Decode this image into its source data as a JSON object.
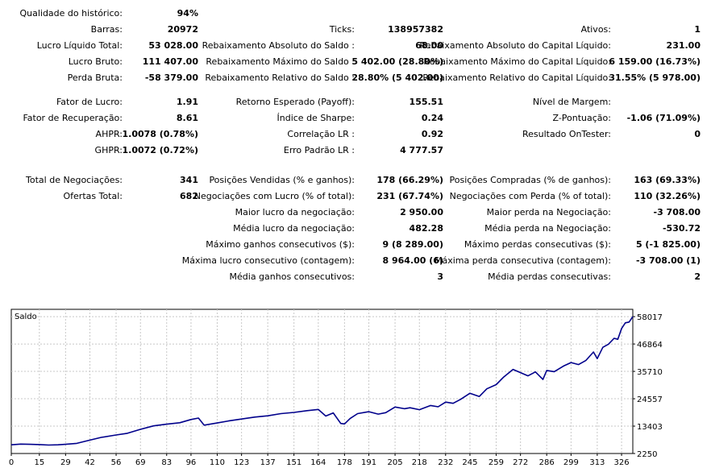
{
  "report": {
    "sections": [
      {
        "columns": [
          [
            {
              "label": "Qualidade do histórico:",
              "value": "94%"
            },
            {
              "label": "Barras:",
              "value": "20972"
            },
            {
              "label": "Lucro Líquido Total:",
              "value": "53 028.00"
            },
            {
              "label": "Lucro Bruto:",
              "value": "111 407.00"
            },
            {
              "label": "Perda Bruta:",
              "value": "-58 379.00"
            }
          ],
          [
            {
              "label": "",
              "value": ""
            },
            {
              "label": "Ticks:",
              "value": "138957382"
            },
            {
              "label": "Rebaixamento Absoluto do Saldo :",
              "value": "68.00"
            },
            {
              "label": "Rebaixamento Máximo do Saldo :",
              "value": "5 402.00 (28.80%)"
            },
            {
              "label": "Rebaixamento Relativo do Saldo :",
              "value": "28.80% (5 402.00)"
            }
          ],
          [
            {
              "label": "",
              "value": ""
            },
            {
              "label": "Ativos:",
              "value": "1"
            },
            {
              "label": "Rebaixamento Absoluto do Capital Líquido:",
              "value": "231.00"
            },
            {
              "label": "Rebaixamento Máximo do Capital Líquido:",
              "value": "6 159.00 (16.73%)"
            },
            {
              "label": "Rebaixamento Relativo do Capital Líquido:",
              "value": "31.55% (5 978.00)"
            }
          ]
        ]
      },
      {
        "columns": [
          [
            {
              "label": "Fator de Lucro:",
              "value": "1.91"
            },
            {
              "label": "Fator de Recuperação:",
              "value": "8.61"
            },
            {
              "label": "AHPR:",
              "value": "1.0078 (0.78%)"
            },
            {
              "label": "GHPR:",
              "value": "1.0072 (0.72%)"
            }
          ],
          [
            {
              "label": "Retorno Esperado (Payoff):",
              "value": "155.51"
            },
            {
              "label": "Índice de Sharpe:",
              "value": "0.24"
            },
            {
              "label": "Correlação LR :",
              "value": "0.92"
            },
            {
              "label": "Erro Padrão LR :",
              "value": "4 777.57"
            }
          ],
          [
            {
              "label": "Nível de Margem:",
              "value": ""
            },
            {
              "label": "Z-Pontuação:",
              "value": "-1.06 (71.09%)"
            },
            {
              "label": "Resultado OnTester:",
              "value": "0"
            },
            {
              "label": "",
              "value": ""
            }
          ]
        ]
      },
      {
        "columns": [
          [
            {
              "label": "Total de Negociações:",
              "value": "341"
            },
            {
              "label": "Ofertas Total:",
              "value": "682"
            }
          ],
          [
            {
              "label": "Posições Vendidas (% e ganhos):",
              "value": "178 (66.29%)"
            },
            {
              "label": "Negociações com Lucro (% of total):",
              "value": "231 (67.74%)"
            },
            {
              "label": "Maior lucro da negociação:",
              "value": "2 950.00"
            },
            {
              "label": "Média lucro da negociação:",
              "value": "482.28"
            },
            {
              "label": "Máximo ganhos consecutivos ($):",
              "value": "9 (8 289.00)"
            },
            {
              "label": "Máxima lucro consecutivo (contagem):",
              "value": "8 964.00 (6)"
            },
            {
              "label": "Média ganhos consecutivos:",
              "value": "3"
            }
          ],
          [
            {
              "label": "Posições Compradas (% de ganhos):",
              "value": "163 (69.33%)"
            },
            {
              "label": "Negociações com Perda (% of total):",
              "value": "110 (32.26%)"
            },
            {
              "label": "Maior perda na Negociação:",
              "value": "-3 708.00"
            },
            {
              "label": "Média perda na Negociação:",
              "value": "-530.72"
            },
            {
              "label": "Máximo perdas consecutivas ($):",
              "value": "5 (-1 825.00)"
            },
            {
              "label": "Máxima perda consecutiva (contagem):",
              "value": "-3 708.00 (1)"
            },
            {
              "label": "Média perdas consecutivas:",
              "value": "2"
            }
          ]
        ]
      }
    ]
  },
  "chart_data": {
    "type": "line",
    "title": "Saldo",
    "xlabel": "",
    "ylabel": "",
    "x_ticks": [
      "0",
      "15",
      "29",
      "42",
      "56",
      "69",
      "83",
      "96",
      "110",
      "123",
      "137",
      "151",
      "164",
      "178",
      "191",
      "205",
      "218",
      "232",
      "245",
      "259",
      "272",
      "286",
      "299",
      "313",
      "326"
    ],
    "y_ticks": [
      58017,
      46864,
      35710,
      24557,
      13403,
      2250
    ],
    "xlim": [
      0,
      332
    ],
    "ylim": [
      2250,
      61000
    ],
    "grid": true,
    "legend": "none",
    "colors": {
      "line": "#00008b",
      "grid": "#c8c8c8",
      "frame": "#000000"
    },
    "series": [
      {
        "x": [
          0,
          5,
          10,
          15,
          20,
          25,
          29,
          35,
          42,
          48,
          56,
          62,
          69,
          76,
          83,
          90,
          96,
          100,
          103,
          110,
          116,
          123,
          130,
          137,
          144,
          151,
          158,
          164,
          168,
          172,
          176,
          178,
          181,
          185,
          191,
          196,
          200,
          205,
          210,
          213,
          218,
          224,
          228,
          232,
          236,
          240,
          245,
          250,
          254,
          259,
          263,
          268,
          272,
          276,
          280,
          284,
          286,
          290,
          295,
          299,
          303,
          307,
          311,
          313,
          316,
          319,
          322,
          324,
          326,
          328,
          330,
          332
        ],
        "y": [
          5800,
          6100,
          6000,
          5900,
          5700,
          5800,
          6000,
          6400,
          7700,
          8800,
          9800,
          10500,
          12100,
          13500,
          14200,
          14800,
          16100,
          16700,
          13800,
          14700,
          15500,
          16300,
          17100,
          17600,
          18500,
          19000,
          19700,
          20200,
          17500,
          18800,
          14500,
          14300,
          16500,
          18500,
          19300,
          18300,
          18900,
          21200,
          20500,
          20900,
          20100,
          21800,
          21300,
          23200,
          22700,
          24300,
          26800,
          25500,
          28600,
          30300,
          33400,
          36500,
          35200,
          33900,
          35500,
          32400,
          36100,
          35600,
          37900,
          39300,
          38500,
          40200,
          43600,
          40900,
          45500,
          46800,
          49200,
          48800,
          53200,
          55500,
          55800,
          58000
        ]
      }
    ]
  }
}
